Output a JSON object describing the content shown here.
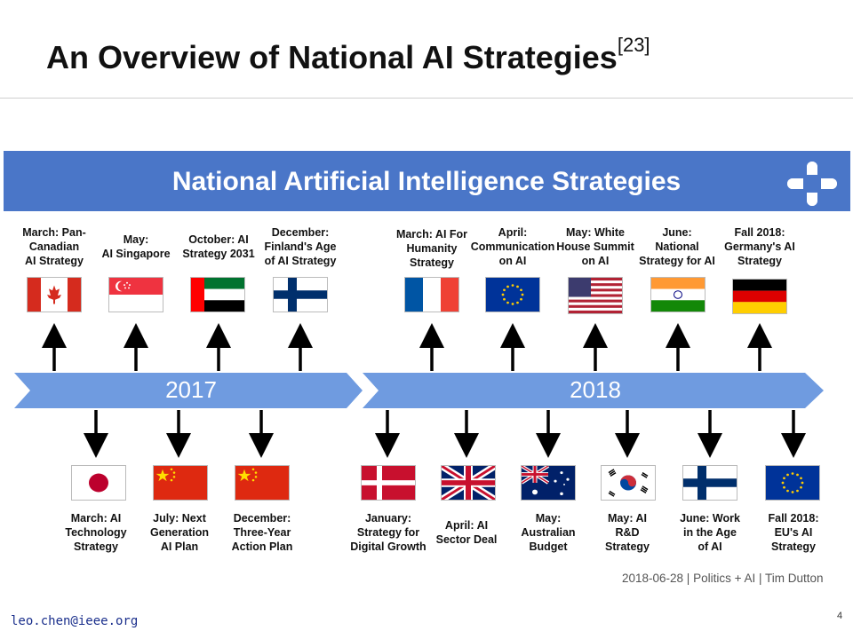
{
  "slide": {
    "title": "An Overview of National AI Strategies",
    "citation": "[23]",
    "page_number": "4",
    "email": "leo.chen@ieee.org"
  },
  "banner": {
    "title": "National Artificial Intelligence Strategies",
    "color": "#4a76c8"
  },
  "timeline": {
    "year1": "2017",
    "year2": "2018"
  },
  "events_top": [
    {
      "caption": [
        "March: Pan-",
        "Canadian",
        "AI Strategy"
      ],
      "flag": "canada-flag"
    },
    {
      "caption": [
        "May:",
        "AI Singapore"
      ],
      "flag": "singapore-flag"
    },
    {
      "caption": [
        "October: AI",
        "Strategy 2031"
      ],
      "flag": "uae-flag"
    },
    {
      "caption": [
        "December:",
        "Finland's Age",
        "of AI Strategy"
      ],
      "flag": "finland-flag"
    },
    {
      "caption": [
        "March: AI For",
        "Humanity",
        "Strategy"
      ],
      "flag": "france-flag"
    },
    {
      "caption": [
        "April:",
        "Communication",
        "on AI"
      ],
      "flag": "eu-flag"
    },
    {
      "caption": [
        "May: White",
        "House Summit",
        "on AI"
      ],
      "flag": "usa-flag"
    },
    {
      "caption": [
        "June:",
        "National",
        "Strategy for AI"
      ],
      "flag": "india-flag"
    },
    {
      "caption": [
        "Fall 2018:",
        "Germany's AI",
        "Strategy"
      ],
      "flag": "germany-flag"
    }
  ],
  "events_bottom": [
    {
      "caption": [
        "March: AI",
        "Technology",
        "Strategy"
      ],
      "flag": "japan-flag"
    },
    {
      "caption": [
        "July: Next",
        "Generation",
        "AI Plan"
      ],
      "flag": "china-flag"
    },
    {
      "caption": [
        "December:",
        "Three-Year",
        "Action Plan"
      ],
      "flag": "china-flag"
    },
    {
      "caption": [
        "January:",
        "Strategy for",
        "Digital Growth"
      ],
      "flag": "denmark-flag"
    },
    {
      "caption": [
        "April: AI",
        "Sector Deal"
      ],
      "flag": "uk-flag"
    },
    {
      "caption": [
        "May:",
        "Australian",
        "Budget"
      ],
      "flag": "australia-flag"
    },
    {
      "caption": [
        "May: AI",
        "R&D",
        "Strategy"
      ],
      "flag": "south-korea-flag"
    },
    {
      "caption": [
        "June: Work",
        "in the Age",
        "of AI"
      ],
      "flag": "finland-flag"
    },
    {
      "caption": [
        "Fall 2018:",
        "EU's AI",
        "Strategy"
      ],
      "flag": "eu-flag"
    }
  ],
  "source_line": "2018-06-28 | Politics + AI | Tim Dutton"
}
